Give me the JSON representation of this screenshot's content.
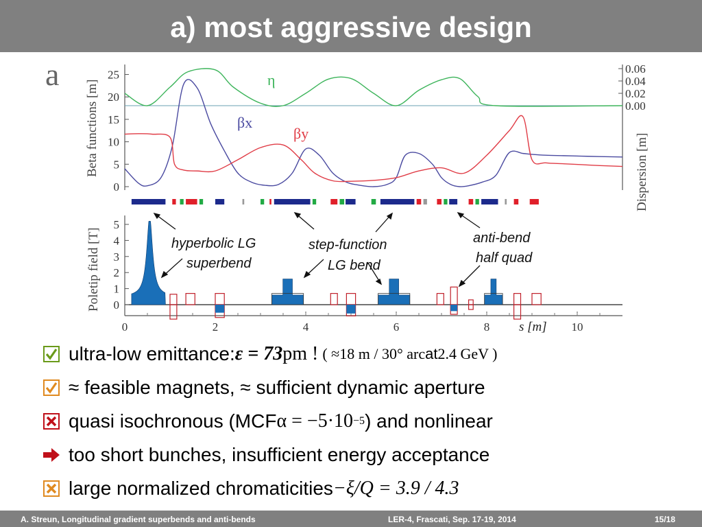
{
  "slide": {
    "title": "a) most aggressive design",
    "page_number": "15/18"
  },
  "figure": {
    "panel_label": "a",
    "top_ylabel": "Beta functions [m]",
    "right_ylabel": "Dispersion  [m]",
    "bottom_ylabel": "Poletip field [T]",
    "xlabel": "s [m]",
    "label_eta": "η",
    "label_bx": "βx",
    "label_by": "βy",
    "annotations": [
      "hyperbolic LG",
      "superbend",
      "step-function",
      "LG bend",
      "anti-bend",
      "half quad"
    ],
    "colors": {
      "eta": "#3cb45a",
      "beta_x": "#4a4aa0",
      "beta_y": "#e03c46",
      "magnet_fill": "#1a6fb8",
      "bend_block": "#1c2a8c",
      "quad_red": "#e0202a",
      "quad_green": "#22aa44"
    }
  },
  "chart_data": [
    {
      "type": "line",
      "title": "",
      "xlabel": "",
      "ylabel": "Beta functions [m]",
      "xlim": [
        0,
        11
      ],
      "ylim": [
        0,
        26
      ],
      "y_ticks": [
        0,
        5,
        10,
        15,
        20,
        25
      ],
      "series": [
        {
          "name": "βx",
          "x": [
            0,
            0.3,
            0.5,
            0.8,
            1.05,
            1.3,
            1.6,
            1.9,
            2.2,
            2.5,
            2.8,
            3.1,
            3.4,
            3.7,
            4.0,
            4.3,
            4.6,
            4.9,
            5.2,
            5.5,
            5.8,
            6.0,
            6.2,
            6.5,
            6.8,
            7.0,
            7.2,
            7.4,
            7.6,
            7.9,
            8.2,
            8.5,
            8.8,
            9.0,
            9.3,
            9.7,
            10.1,
            10.5,
            11.0
          ],
          "y": [
            4,
            0.8,
            0.2,
            2,
            9,
            22.8,
            22,
            14,
            8,
            3,
            1,
            0.3,
            0.5,
            3,
            8.4,
            7,
            3,
            1,
            0.3,
            0,
            0.5,
            2,
            7,
            7.4,
            5,
            2,
            0.5,
            0,
            0.2,
            1,
            2.5,
            7.6,
            7.4,
            7.2,
            7,
            6.9,
            6.8,
            6.7,
            6.6
          ]
        },
        {
          "name": "βy",
          "x": [
            0,
            0.3,
            0.6,
            1.0,
            1.1,
            1.3,
            1.6,
            2.0,
            2.5,
            3.0,
            3.5,
            3.9,
            4.2,
            4.6,
            5.0,
            5.5,
            6.0,
            6.5,
            7.0,
            7.5,
            8.0,
            8.5,
            8.8,
            9.0,
            9.3,
            9.7,
            10.1,
            10.5,
            11.0
          ],
          "y": [
            11.7,
            11.8,
            11.7,
            11,
            5,
            3.7,
            3.5,
            3.5,
            6,
            8.7,
            9.3,
            6,
            3,
            1.3,
            1.2,
            1.4,
            2,
            3.5,
            4.2,
            3,
            7,
            12.5,
            15.6,
            6,
            5.3,
            5.1,
            4.9,
            4.7,
            4.5
          ]
        }
      ]
    },
    {
      "type": "line",
      "title": "",
      "xlabel": "",
      "ylabel": "Dispersion  [m]",
      "ylim": [
        0,
        0.06
      ],
      "y_ticks": [
        "0.00",
        "0.02",
        "0.04",
        "0.06"
      ],
      "series": [
        {
          "name": "η",
          "x": [
            0,
            0.5,
            1.0,
            1.4,
            2.0,
            2.4,
            3.0,
            3.5,
            4.0,
            4.5,
            5.0,
            5.5,
            6.0,
            6.5,
            7.0,
            7.4,
            7.8,
            8.2,
            11.0
          ],
          "y": [
            0.02,
            0.0,
            0.03,
            0.055,
            0.058,
            0.03,
            0.004,
            0.0,
            0.02,
            0.043,
            0.044,
            0.02,
            0.0,
            0.025,
            0.042,
            0.044,
            0.015,
            0.0,
            0.0
          ]
        }
      ]
    },
    {
      "type": "bar",
      "title": "",
      "xlabel": "s [m]",
      "ylabel": "Poletip field [T]",
      "xlim": [
        0,
        11
      ],
      "ylim": [
        -1,
        5.5
      ],
      "y_ticks": [
        0,
        1,
        2,
        3,
        4,
        5
      ],
      "x_ticks": [
        0,
        2,
        4,
        6,
        8,
        10
      ],
      "note": "magnet field profile along s",
      "bends": [
        {
          "start": 3.25,
          "end": 3.95,
          "field": 1.6
        },
        {
          "start": 5.6,
          "end": 6.3,
          "field": 1.6
        },
        {
          "start": 7.95,
          "end": 8.35,
          "field": 1.6
        }
      ]
    }
  ],
  "bullets": [
    {
      "marker": "check",
      "text_a": "ultra-low emittance: ",
      "math_a": "ε = 73",
      "text_b": " pm ! ",
      "math_b": "( ≈18 m / 30° arc",
      "text_c": " at ",
      "math_c": "2.4 GeV )"
    },
    {
      "marker": "check",
      "text_a": "≈ feasible magnets, ≈ sufficient dynamic aperture"
    },
    {
      "marker": "cross",
      "text_a": "quasi isochronous (MCF ",
      "math_a": "α = −5·10",
      "sup": "−5",
      "text_b": ") and nonlinear"
    },
    {
      "marker": "arrow",
      "text_a": "too short bunches, insufficient energy acceptance"
    },
    {
      "marker": "cross-orange",
      "text_a": "large normalized chromaticities ",
      "math_a": "−ξ/Q = 3.9 / 4.3"
    }
  ],
  "footer": {
    "left": "A. Streun, Longitudinal gradient superbends and anti-bends",
    "center": "LER-4, Frascati,  Sep. 17-19, 2014"
  }
}
